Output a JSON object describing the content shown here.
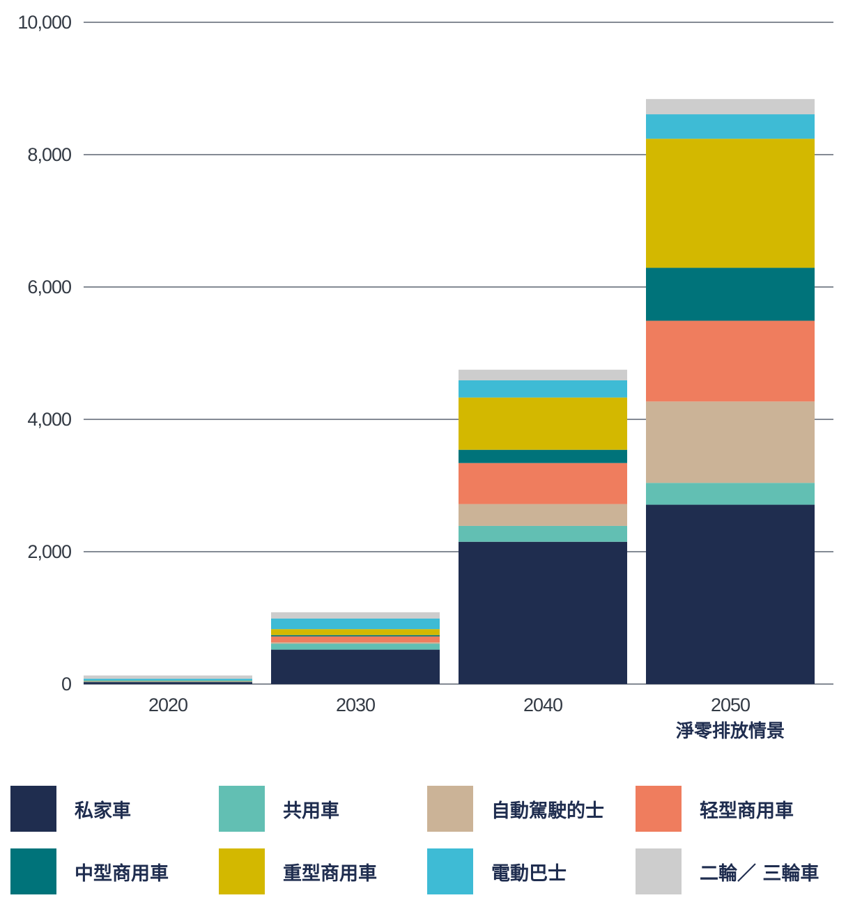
{
  "chart_data": {
    "type": "bar",
    "stacked": true,
    "categories": [
      "2020",
      "2030",
      "2040",
      "2050"
    ],
    "category_sublabels": [
      "",
      "",
      "",
      "淨零排放情景"
    ],
    "ylim": [
      0,
      10000
    ],
    "yticks": [
      "0",
      "2,000",
      "4,000",
      "6,000",
      "8,000",
      "10,000"
    ],
    "ytick_values": [
      0,
      2000,
      4000,
      6000,
      8000,
      10000
    ],
    "grid": true,
    "legend_position": "bottom",
    "series": [
      {
        "name": "私家車",
        "color": "#1f2d4f",
        "values": [
          30,
          520,
          2150,
          2710
        ]
      },
      {
        "name": "共用車",
        "color": "#62bfb3",
        "values": [
          5,
          90,
          240,
          330
        ]
      },
      {
        "name": "自動駕駛的士",
        "color": "#cbb397",
        "values": [
          0,
          20,
          330,
          1230
        ]
      },
      {
        "name": "轻型商用車",
        "color": "#ef7d5e",
        "values": [
          5,
          90,
          620,
          1220
        ]
      },
      {
        "name": "中型商用車",
        "color": "#00737a",
        "values": [
          5,
          20,
          200,
          800
        ]
      },
      {
        "name": "重型商用車",
        "color": "#d3b800",
        "values": [
          5,
          90,
          790,
          1950
        ]
      },
      {
        "name": "電動巴士",
        "color": "#3ebbd5",
        "values": [
          30,
          160,
          260,
          370
        ]
      },
      {
        "name": "二輪／ 三輪車",
        "color": "#cdcdcd",
        "values": [
          50,
          95,
          160,
          230
        ]
      }
    ]
  }
}
